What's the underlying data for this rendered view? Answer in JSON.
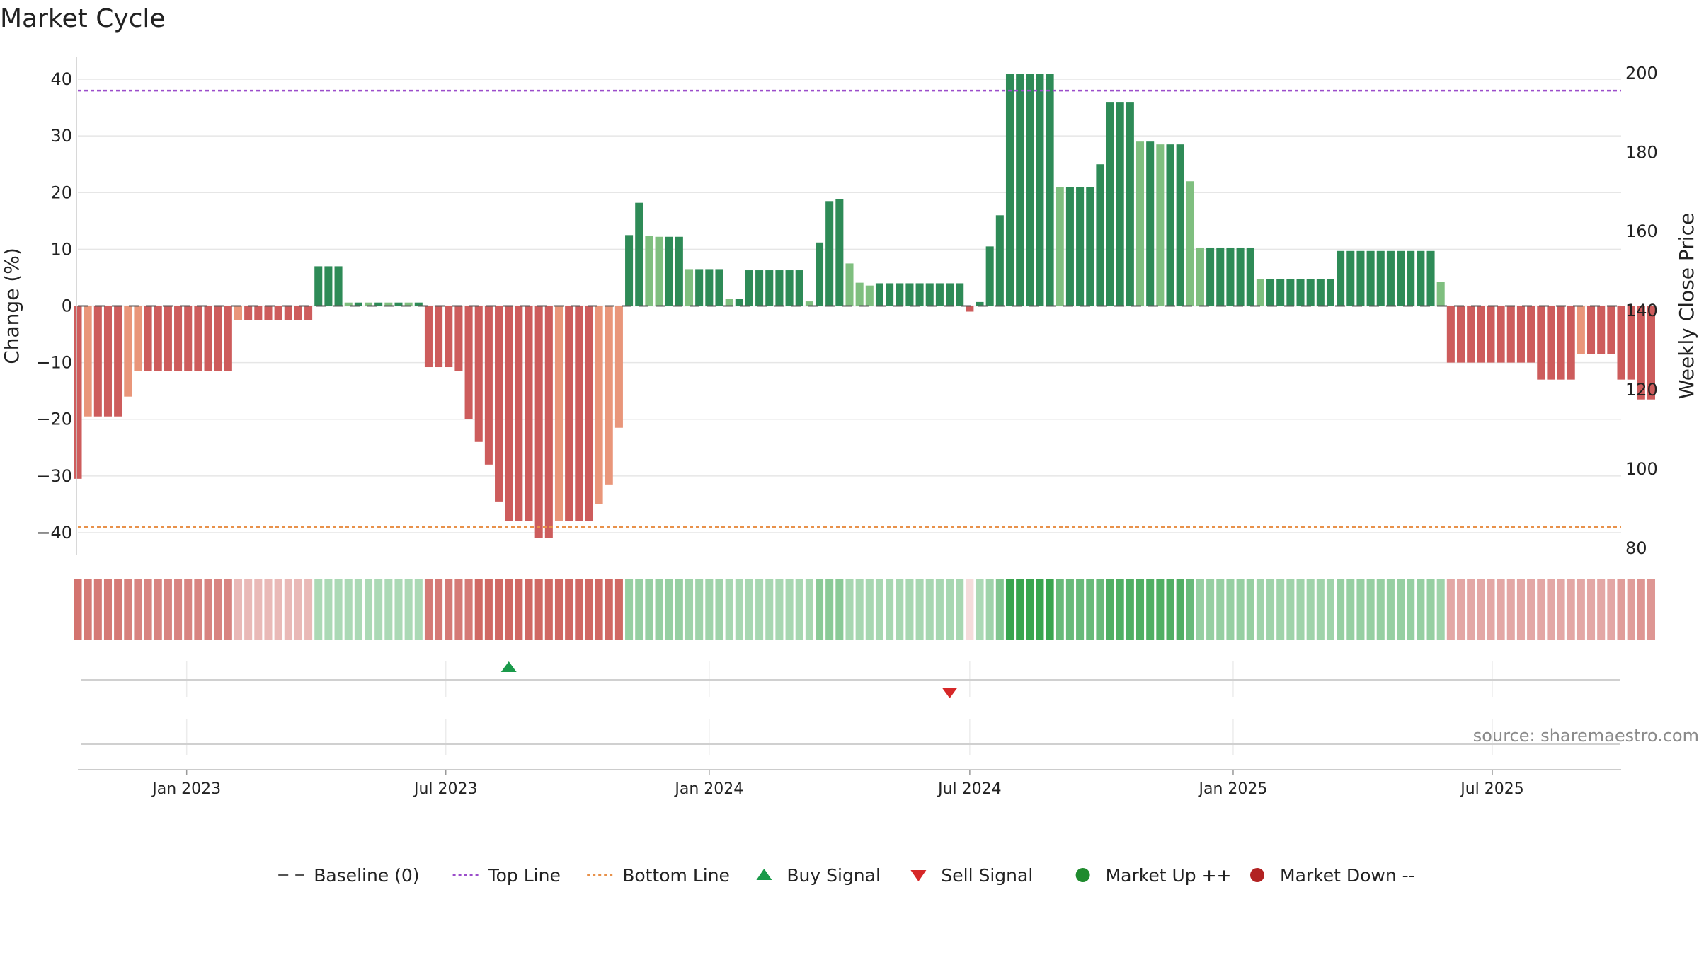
{
  "title": "Market Cycle",
  "source": "source: sharemaestro.com",
  "colors": {
    "strong_up": "#2e8b57",
    "mild_up": "#7fbf7f",
    "strong_down": "#cd5c5c",
    "mild_down": "#e9967a",
    "top_line": "#9b4dca",
    "bottom_line": "#e8914a",
    "buy": "#1a9a4a",
    "sell": "#d62728",
    "market_up": "#1f8b2e",
    "market_down": "#b22222",
    "baseline": "#555555"
  },
  "legend": [
    {
      "label": "Baseline (0)",
      "icon": "dash-line-icon",
      "color": "#555555"
    },
    {
      "label": "Top Line",
      "icon": "dotted-line-icon",
      "color": "#9b4dca"
    },
    {
      "label": "Bottom Line",
      "icon": "dotted-line-icon",
      "color": "#e8914a"
    },
    {
      "label": "Buy Signal",
      "icon": "triangle-up-icon",
      "color": "#1a9a4a"
    },
    {
      "label": "Sell Signal",
      "icon": "triangle-down-icon",
      "color": "#d62728"
    },
    {
      "label": "Market Up ++",
      "icon": "circle-icon",
      "color": "#1f8b2e"
    },
    {
      "label": "Market Down --",
      "icon": "circle-icon",
      "color": "#b22222"
    }
  ],
  "chart_data": {
    "type": "bar",
    "title": "Market Cycle",
    "ylabel": "Change (%)",
    "y2label": "Weekly Close Price",
    "ylim": [
      -44,
      44
    ],
    "y2lim": [
      78,
      204
    ],
    "yticks": [
      40,
      30,
      20,
      10,
      0,
      -10,
      -20,
      -30,
      -40
    ],
    "y2ticks": [
      200,
      180,
      160,
      140,
      120,
      100,
      80
    ],
    "x_start": "2022-10-17",
    "x_end": "2025-09-29",
    "xticks": [
      {
        "label": "Jan 2023",
        "date": "2023-01-01"
      },
      {
        "label": "Jul 2023",
        "date": "2023-07-01"
      },
      {
        "label": "Jan 2024",
        "date": "2024-01-01"
      },
      {
        "label": "Jul 2024",
        "date": "2024-07-01"
      },
      {
        "label": "Jan 2025",
        "date": "2025-01-01"
      },
      {
        "label": "Jul 2025",
        "date": "2025-07-01"
      }
    ],
    "top_line": 38,
    "bottom_line": -39,
    "grid": true,
    "legend_position": "bottom",
    "first_week": "2022-10-17",
    "weeks": [
      {
        "v": -30.5,
        "c": "sd",
        "h": 0.8
      },
      {
        "v": -19.5,
        "c": "md",
        "h": 0.76
      },
      {
        "v": -19.5,
        "c": "sd",
        "h": 0.76
      },
      {
        "v": -19.5,
        "c": "sd",
        "h": 0.76
      },
      {
        "v": -19.5,
        "c": "sd",
        "h": 0.76
      },
      {
        "v": -16,
        "c": "md",
        "h": 0.72
      },
      {
        "v": -11.5,
        "c": "md",
        "h": 0.7
      },
      {
        "v": -11.5,
        "c": "sd",
        "h": 0.7
      },
      {
        "v": -11.5,
        "c": "sd",
        "h": 0.7
      },
      {
        "v": -11.5,
        "c": "sd",
        "h": 0.7
      },
      {
        "v": -11.5,
        "c": "sd",
        "h": 0.7
      },
      {
        "v": -11.5,
        "c": "sd",
        "h": 0.7
      },
      {
        "v": -11.5,
        "c": "sd",
        "h": 0.7
      },
      {
        "v": -11.5,
        "c": "sd",
        "h": 0.7
      },
      {
        "v": -11.5,
        "c": "sd",
        "h": 0.7
      },
      {
        "v": -11.5,
        "c": "sd",
        "h": 0.7
      },
      {
        "v": -2.5,
        "c": "md",
        "h": 0.4
      },
      {
        "v": -2.5,
        "c": "sd",
        "h": 0.4
      },
      {
        "v": -2.5,
        "c": "sd",
        "h": 0.4
      },
      {
        "v": -2.5,
        "c": "sd",
        "h": 0.4
      },
      {
        "v": -2.5,
        "c": "sd",
        "h": 0.4
      },
      {
        "v": -2.5,
        "c": "sd",
        "h": 0.4
      },
      {
        "v": -2.5,
        "c": "sd",
        "h": 0.4
      },
      {
        "v": -2.5,
        "c": "sd",
        "h": 0.4
      },
      {
        "v": 7,
        "c": "su",
        "h": 0.4
      },
      {
        "v": 7,
        "c": "su",
        "h": 0.4
      },
      {
        "v": 7,
        "c": "su",
        "h": 0.4
      },
      {
        "v": 0.6,
        "c": "mu",
        "h": 0.4
      },
      {
        "v": 0.6,
        "c": "su",
        "h": 0.4
      },
      {
        "v": 0.6,
        "c": "mu",
        "h": 0.4
      },
      {
        "v": 0.6,
        "c": "su",
        "h": 0.4
      },
      {
        "v": 0.6,
        "c": "mu",
        "h": 0.4
      },
      {
        "v": 0.6,
        "c": "su",
        "h": 0.4
      },
      {
        "v": 0.6,
        "c": "mu",
        "h": 0.4
      },
      {
        "v": 0.6,
        "c": "su",
        "h": 0.4
      },
      {
        "v": -10.8,
        "c": "sd",
        "h": 0.76
      },
      {
        "v": -10.8,
        "c": "sd",
        "h": 0.76
      },
      {
        "v": -10.8,
        "c": "sd",
        "h": 0.76
      },
      {
        "v": -11.5,
        "c": "sd",
        "h": 0.76
      },
      {
        "v": -20,
        "c": "sd",
        "h": 0.76
      },
      {
        "v": -24,
        "c": "sd",
        "h": 0.86
      },
      {
        "v": -28,
        "c": "sd",
        "h": 0.86
      },
      {
        "v": -34.5,
        "c": "sd",
        "h": 0.86
      },
      {
        "v": -38,
        "c": "sd",
        "h": 0.86
      },
      {
        "v": -38,
        "c": "sd",
        "h": 0.86
      },
      {
        "v": -38,
        "c": "sd",
        "h": 0.86
      },
      {
        "v": -41,
        "c": "sd",
        "h": 0.86
      },
      {
        "v": -41,
        "c": "sd",
        "h": 0.86
      },
      {
        "v": -38,
        "c": "md",
        "h": 0.86
      },
      {
        "v": -38,
        "c": "sd",
        "h": 0.86
      },
      {
        "v": -38,
        "c": "sd",
        "h": 0.86
      },
      {
        "v": -38,
        "c": "sd",
        "h": 0.86
      },
      {
        "v": -35,
        "c": "md",
        "h": 0.86
      },
      {
        "v": -31.5,
        "c": "md",
        "h": 0.86
      },
      {
        "v": -21.5,
        "c": "md",
        "h": 0.86
      },
      {
        "v": 12.5,
        "c": "su",
        "h": 0.5
      },
      {
        "v": 18.2,
        "c": "su",
        "h": 0.5
      },
      {
        "v": 12.3,
        "c": "mu",
        "h": 0.5
      },
      {
        "v": 12.2,
        "c": "mu",
        "h": 0.5
      },
      {
        "v": 12.2,
        "c": "su",
        "h": 0.5
      },
      {
        "v": 12.2,
        "c": "su",
        "h": 0.5
      },
      {
        "v": 6.5,
        "c": "mu",
        "h": 0.46
      },
      {
        "v": 6.5,
        "c": "su",
        "h": 0.46
      },
      {
        "v": 6.5,
        "c": "su",
        "h": 0.46
      },
      {
        "v": 6.5,
        "c": "su",
        "h": 0.46
      },
      {
        "v": 1.2,
        "c": "mu",
        "h": 0.42
      },
      {
        "v": 1.2,
        "c": "su",
        "h": 0.42
      },
      {
        "v": 6.3,
        "c": "su",
        "h": 0.42
      },
      {
        "v": 6.3,
        "c": "su",
        "h": 0.42
      },
      {
        "v": 6.3,
        "c": "su",
        "h": 0.42
      },
      {
        "v": 6.3,
        "c": "su",
        "h": 0.42
      },
      {
        "v": 6.3,
        "c": "su",
        "h": 0.42
      },
      {
        "v": 6.3,
        "c": "su",
        "h": 0.42
      },
      {
        "v": 0.8,
        "c": "mu",
        "h": 0.42
      },
      {
        "v": 11.2,
        "c": "su",
        "h": 0.56
      },
      {
        "v": 18.5,
        "c": "su",
        "h": 0.56
      },
      {
        "v": 18.9,
        "c": "su",
        "h": 0.56
      },
      {
        "v": 7.5,
        "c": "mu",
        "h": 0.42
      },
      {
        "v": 4.1,
        "c": "mu",
        "h": 0.42
      },
      {
        "v": 3.6,
        "c": "mu",
        "h": 0.42
      },
      {
        "v": 4,
        "c": "su",
        "h": 0.42
      },
      {
        "v": 4,
        "c": "su",
        "h": 0.42
      },
      {
        "v": 4,
        "c": "su",
        "h": 0.42
      },
      {
        "v": 4,
        "c": "su",
        "h": 0.42
      },
      {
        "v": 4,
        "c": "su",
        "h": 0.42
      },
      {
        "v": 4,
        "c": "su",
        "h": 0.42
      },
      {
        "v": 4,
        "c": "su",
        "h": 0.42
      },
      {
        "v": 4,
        "c": "su",
        "h": 0.42
      },
      {
        "v": 4,
        "c": "su",
        "h": 0.42
      },
      {
        "v": -1,
        "c": "sd",
        "h": 0.2
      },
      {
        "v": 0.7,
        "c": "su",
        "h": 0.4
      },
      {
        "v": 10.5,
        "c": "su",
        "h": 0.46
      },
      {
        "v": 16,
        "c": "su",
        "h": 0.6
      },
      {
        "v": 41,
        "c": "su",
        "h": 0.95
      },
      {
        "v": 41,
        "c": "su",
        "h": 0.95
      },
      {
        "v": 41,
        "c": "su",
        "h": 0.95
      },
      {
        "v": 41,
        "c": "su",
        "h": 0.95
      },
      {
        "v": 41,
        "c": "su",
        "h": 0.95
      },
      {
        "v": 21,
        "c": "mu",
        "h": 0.72
      },
      {
        "v": 21,
        "c": "su",
        "h": 0.72
      },
      {
        "v": 21,
        "c": "su",
        "h": 0.72
      },
      {
        "v": 21,
        "c": "su",
        "h": 0.72
      },
      {
        "v": 25,
        "c": "su",
        "h": 0.72
      },
      {
        "v": 36,
        "c": "su",
        "h": 0.84
      },
      {
        "v": 36,
        "c": "su",
        "h": 0.84
      },
      {
        "v": 36,
        "c": "su",
        "h": 0.84
      },
      {
        "v": 29,
        "c": "mu",
        "h": 0.84
      },
      {
        "v": 29,
        "c": "su",
        "h": 0.84
      },
      {
        "v": 28.5,
        "c": "mu",
        "h": 0.84
      },
      {
        "v": 28.5,
        "c": "su",
        "h": 0.84
      },
      {
        "v": 28.5,
        "c": "su",
        "h": 0.84
      },
      {
        "v": 22,
        "c": "mu",
        "h": 0.72
      },
      {
        "v": 10.3,
        "c": "mu",
        "h": 0.5
      },
      {
        "v": 10.3,
        "c": "su",
        "h": 0.5
      },
      {
        "v": 10.3,
        "c": "su",
        "h": 0.5
      },
      {
        "v": 10.3,
        "c": "su",
        "h": 0.5
      },
      {
        "v": 10.3,
        "c": "su",
        "h": 0.5
      },
      {
        "v": 10.3,
        "c": "su",
        "h": 0.5
      },
      {
        "v": 4.8,
        "c": "mu",
        "h": 0.46
      },
      {
        "v": 4.8,
        "c": "su",
        "h": 0.46
      },
      {
        "v": 4.8,
        "c": "su",
        "h": 0.46
      },
      {
        "v": 4.8,
        "c": "su",
        "h": 0.46
      },
      {
        "v": 4.8,
        "c": "su",
        "h": 0.46
      },
      {
        "v": 4.8,
        "c": "su",
        "h": 0.46
      },
      {
        "v": 4.8,
        "c": "su",
        "h": 0.46
      },
      {
        "v": 4.8,
        "c": "su",
        "h": 0.46
      },
      {
        "v": 9.7,
        "c": "su",
        "h": 0.5
      },
      {
        "v": 9.7,
        "c": "su",
        "h": 0.5
      },
      {
        "v": 9.7,
        "c": "su",
        "h": 0.5
      },
      {
        "v": 9.7,
        "c": "su",
        "h": 0.5
      },
      {
        "v": 9.7,
        "c": "su",
        "h": 0.5
      },
      {
        "v": 9.7,
        "c": "su",
        "h": 0.5
      },
      {
        "v": 9.7,
        "c": "su",
        "h": 0.5
      },
      {
        "v": 9.7,
        "c": "su",
        "h": 0.5
      },
      {
        "v": 9.7,
        "c": "su",
        "h": 0.5
      },
      {
        "v": 9.7,
        "c": "su",
        "h": 0.5
      },
      {
        "v": 4.3,
        "c": "mu",
        "h": 0.46
      },
      {
        "v": -10,
        "c": "sd",
        "h": 0.5
      },
      {
        "v": -10,
        "c": "sd",
        "h": 0.5
      },
      {
        "v": -10,
        "c": "sd",
        "h": 0.5
      },
      {
        "v": -10,
        "c": "sd",
        "h": 0.5
      },
      {
        "v": -10,
        "c": "sd",
        "h": 0.5
      },
      {
        "v": -10,
        "c": "sd",
        "h": 0.5
      },
      {
        "v": -10,
        "c": "sd",
        "h": 0.5
      },
      {
        "v": -10,
        "c": "sd",
        "h": 0.5
      },
      {
        "v": -10,
        "c": "sd",
        "h": 0.5
      },
      {
        "v": -13,
        "c": "sd",
        "h": 0.5
      },
      {
        "v": -13,
        "c": "sd",
        "h": 0.5
      },
      {
        "v": -13,
        "c": "sd",
        "h": 0.5
      },
      {
        "v": -13,
        "c": "sd",
        "h": 0.5
      },
      {
        "v": -8.5,
        "c": "md",
        "h": 0.5
      },
      {
        "v": -8.5,
        "c": "sd",
        "h": 0.5
      },
      {
        "v": -8.5,
        "c": "sd",
        "h": 0.5
      },
      {
        "v": -8.5,
        "c": "sd",
        "h": 0.5
      },
      {
        "v": -13,
        "c": "sd",
        "h": 0.56
      },
      {
        "v": -13,
        "c": "sd",
        "h": 0.56
      },
      {
        "v": -16.5,
        "c": "sd",
        "h": 0.6
      },
      {
        "v": -16.5,
        "c": "sd",
        "h": 0.6
      }
    ],
    "signals": [
      {
        "type": "buy",
        "date": "2023-08-14"
      },
      {
        "type": "sell",
        "date": "2024-06-17"
      }
    ]
  }
}
